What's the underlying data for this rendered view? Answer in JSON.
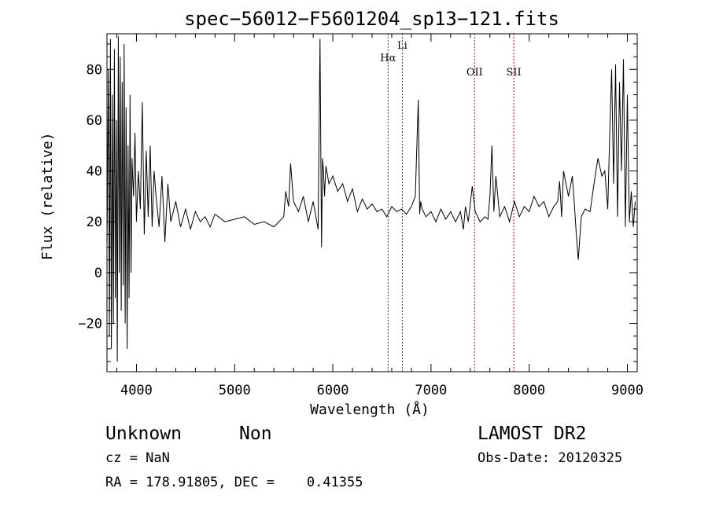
{
  "chart_data": {
    "type": "line",
    "title": "spec−56012−F5601204_sp13−121.fits",
    "xlabel": "Wavelength (Å)",
    "ylabel": "Flux (relative)",
    "xlim": [
      3700,
      9100
    ],
    "ylim": [
      -39,
      94
    ],
    "x_ticks": [
      4000,
      5000,
      6000,
      7000,
      8000,
      9000
    ],
    "x_tick_labels": [
      "4000",
      "5000",
      "6000",
      "7000",
      "8000",
      "9000"
    ],
    "y_ticks": [
      -20,
      0,
      20,
      40,
      60,
      80
    ],
    "y_tick_labels": [
      "−20",
      "0",
      "20",
      "40",
      "60",
      "80"
    ],
    "grid": false,
    "line_color": "#000000",
    "marker_color": "#cc0000",
    "series": [
      {
        "x": [
          3700,
          3715,
          3725,
          3735,
          3745,
          3755,
          3765,
          3775,
          3785,
          3795,
          3805,
          3815,
          3825,
          3835,
          3845,
          3855,
          3865,
          3875,
          3885,
          3895,
          3905,
          3915,
          3925,
          3935,
          3945,
          3955,
          3970,
          3985,
          4000,
          4020,
          4040,
          4060,
          4080,
          4100,
          4120,
          4140,
          4160,
          4180,
          4200,
          4230,
          4260,
          4290,
          4320,
          4350,
          4400,
          4450,
          4500,
          4550,
          4600,
          4650,
          4700,
          4750,
          4800,
          4900,
          5000,
          5100,
          5200,
          5300,
          5400,
          5500,
          5520,
          5550,
          5570,
          5600,
          5650,
          5700,
          5750,
          5800,
          5850,
          5870,
          5885,
          5895,
          5905,
          5915,
          5930,
          5960,
          6000,
          6050,
          6100,
          6150,
          6200,
          6250,
          6300,
          6350,
          6400,
          6450,
          6500,
          6550,
          6600,
          6650,
          6700,
          6750,
          6800,
          6840,
          6870,
          6885,
          6895,
          6910,
          6950,
          7000,
          7050,
          7100,
          7150,
          7200,
          7250,
          7300,
          7330,
          7350,
          7380,
          7420,
          7450,
          7500,
          7550,
          7580,
          7600,
          7620,
          7640,
          7660,
          7700,
          7750,
          7800,
          7850,
          7900,
          7950,
          8000,
          8050,
          8100,
          8150,
          8200,
          8250,
          8290,
          8310,
          8330,
          8350,
          8400,
          8440,
          8460,
          8480,
          8500,
          8530,
          8570,
          8620,
          8660,
          8700,
          8740,
          8770,
          8800,
          8820,
          8840,
          8860,
          8880,
          8900,
          8920,
          8940,
          8960,
          8980,
          9000,
          9020,
          9040,
          9060,
          9080
        ],
        "y": [
          10,
          80,
          -25,
          92,
          -30,
          70,
          -20,
          88,
          -10,
          60,
          -35,
          93,
          0,
          85,
          -15,
          75,
          -5,
          90,
          -20,
          65,
          -30,
          50,
          -10,
          70,
          0,
          45,
          30,
          55,
          20,
          40,
          25,
          67,
          15,
          48,
          22,
          50,
          18,
          40,
          30,
          18,
          38,
          12,
          35,
          20,
          28,
          18,
          25,
          17,
          24,
          20,
          22,
          18,
          23,
          20,
          21,
          22,
          19,
          20,
          18,
          22,
          32,
          26,
          43,
          28,
          24,
          30,
          20,
          28,
          17,
          92,
          10,
          45,
          40,
          30,
          42,
          35,
          38,
          32,
          35,
          28,
          33,
          24,
          29,
          25,
          27,
          24,
          25,
          22,
          26,
          24,
          25,
          23,
          26,
          30,
          68,
          23,
          28,
          25,
          22,
          24,
          20,
          25,
          21,
          24,
          20,
          24,
          17,
          26,
          20,
          34,
          24,
          20,
          22,
          21,
          30,
          50,
          24,
          38,
          22,
          26,
          20,
          28,
          22,
          26,
          24,
          30,
          26,
          28,
          22,
          26,
          28,
          36,
          22,
          40,
          30,
          38,
          27,
          15,
          5,
          22,
          25,
          24,
          35,
          45,
          38,
          40,
          25,
          55,
          80,
          35,
          82,
          22,
          75,
          40,
          84,
          18,
          70,
          20,
          32,
          18,
          28
        ]
      }
    ],
    "annotations": [
      {
        "label": "Hα",
        "x": 6563
      },
      {
        "label": "Li",
        "x": 6708
      },
      {
        "label": "OII",
        "x": 7444
      },
      {
        "label": "SII",
        "x": 7843
      }
    ]
  },
  "footer": {
    "class_name": "Unknown",
    "subclass_name": "Non",
    "survey": "LAMOST DR2",
    "redshift": "cz = NaN",
    "obs_date": "Obs-Date: 20120325",
    "coords": "RA = 178.91805, DEC =    0.41355"
  }
}
